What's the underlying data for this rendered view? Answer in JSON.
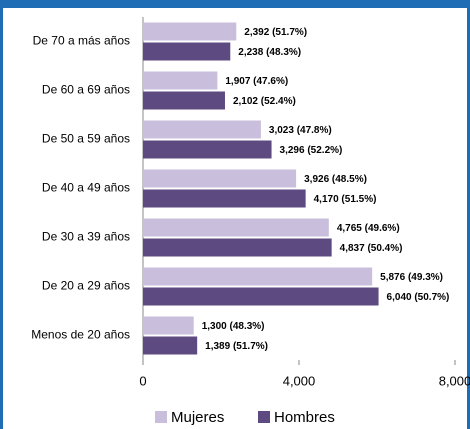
{
  "chart_data": {
    "type": "bar",
    "orientation": "horizontal",
    "categories": [
      "De 70 a más años",
      "De 60 a 69 años",
      "De 50 a 59 años",
      "De 40 a 49 años",
      "De 30 a 39 años",
      "De 20 a 29 años",
      "Menos de 20 años"
    ],
    "series": [
      {
        "name": "Mujeres",
        "color": "#c9bfdc",
        "values": [
          2392,
          1907,
          3023,
          3926,
          4765,
          5876,
          1300
        ],
        "value_labels": [
          "2,392 (51.7%)",
          "1,907 (47.6%)",
          "3,023 (47.8%)",
          "3,926 (48.5%)",
          "4,765 (49.6%)",
          "5,876 (49.3%)",
          "1,300 (48.3%)"
        ]
      },
      {
        "name": "Hombres",
        "color": "#5d4a80",
        "values": [
          2238,
          2102,
          3296,
          4170,
          4837,
          6040,
          1389
        ],
        "value_labels": [
          "2,238 (48.3%)",
          "2,102 (52.4%)",
          "3,296 (52.2%)",
          "4,170 (51.5%)",
          "4,837 (50.4%)",
          "6,040 (50.7%)",
          "1,389 (51.7%)"
        ]
      }
    ],
    "xlim": [
      0,
      8000
    ],
    "xticks": [
      0,
      {
        "value": 4000,
        "label": "4,000"
      },
      {
        "value": 8000,
        "label": "8,000"
      }
    ],
    "legend": "bottom"
  }
}
